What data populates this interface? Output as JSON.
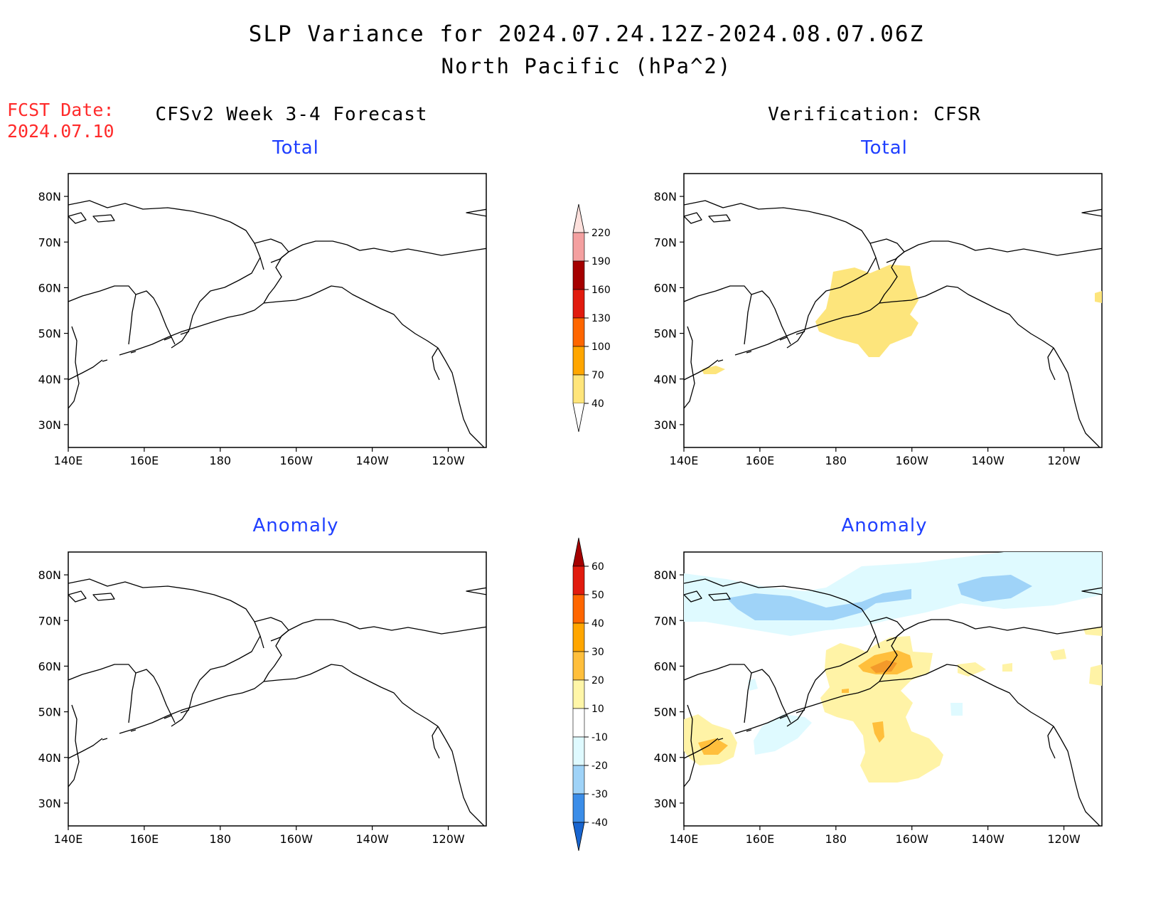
{
  "title": "SLP Variance for 2024.07.24.12Z-2024.08.07.06Z",
  "subtitle": "North Pacific (hPa^2)",
  "fcst_label": "FCST Date:",
  "fcst_date": "2024.07.10",
  "left_column_title": "CFSv2 Week 3-4 Forecast",
  "right_column_title": "Verification: CFSR",
  "panels": {
    "top_left": "Total",
    "top_right": "Total",
    "bottom_left": "Anomaly",
    "bottom_right": "Anomaly"
  },
  "axes": {
    "x_ticks": [
      "140E",
      "160E",
      "180",
      "160W",
      "140W",
      "120W"
    ],
    "y_ticks": [
      "80N",
      "70N",
      "60N",
      "50N",
      "40N",
      "30N"
    ],
    "lon_range_east": [
      140,
      250
    ],
    "lat_range": [
      25,
      85
    ]
  },
  "colorbar_total": {
    "levels": [
      "220",
      "190",
      "160",
      "130",
      "100",
      "70",
      "40"
    ],
    "colors": [
      "#fde0dc",
      "#f4a0a0",
      "#a50000",
      "#e11b0e",
      "#ff6600",
      "#ffa600",
      "#ffe57a"
    ]
  },
  "colorbar_anomaly": {
    "levels": [
      "60",
      "50",
      "40",
      "30",
      "20",
      "10",
      "-10",
      "-20",
      "-30",
      "-40"
    ],
    "colors": [
      "#a50000",
      "#e11b0e",
      "#ff6600",
      "#ffa600",
      "#ffbf3c",
      "#fff6a8",
      "#ffffff",
      "#dffaff",
      "#9fd3f8",
      "#3b8de8",
      "#1865d0"
    ]
  },
  "colors": {
    "total_fill": "#fde57c",
    "anom_pos1": "#fff3a6",
    "anom_pos2": "#ffbf3c",
    "anom_pos3": "#f39a2a",
    "anom_neg1": "#dffaff",
    "anom_neg2": "#9fd3f8"
  }
}
